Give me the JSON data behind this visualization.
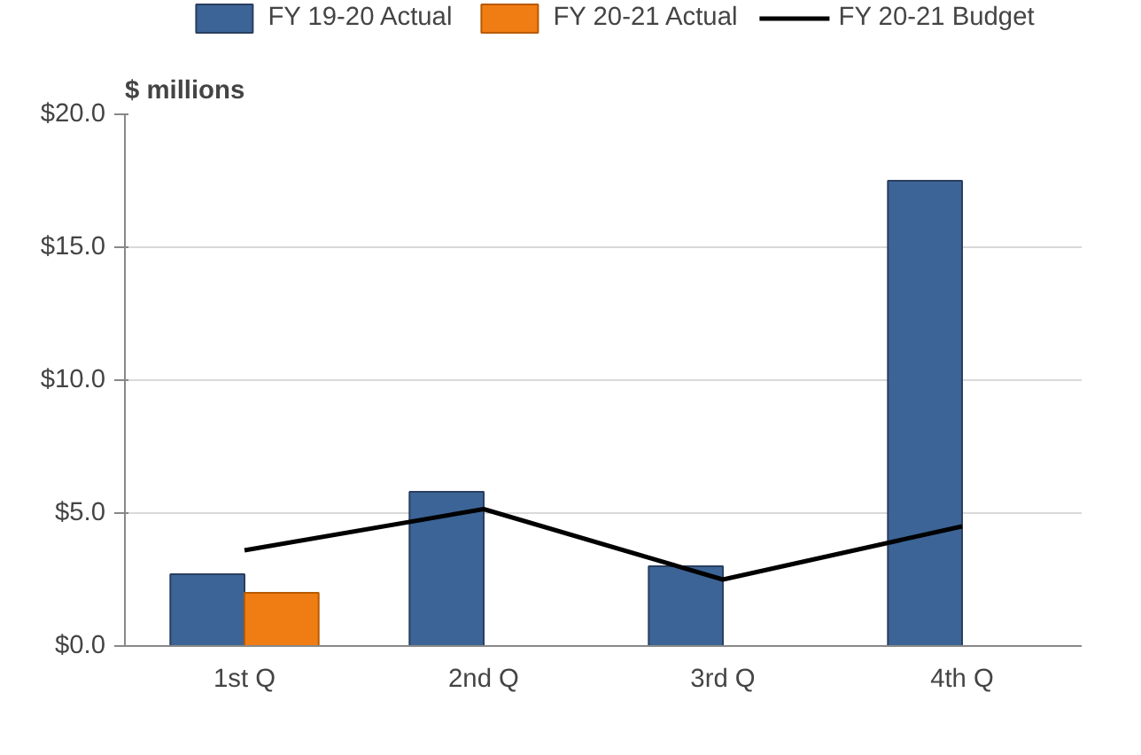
{
  "chart_data": {
    "type": "bar",
    "ylabel": "$ millions",
    "categories": [
      "1st Q",
      "2nd Q",
      "3rd Q",
      "4th Q"
    ],
    "series": [
      {
        "name": "FY 19-20 Actual",
        "color": "#3c6496",
        "values": [
          2.7,
          5.8,
          3.0,
          17.5
        ]
      },
      {
        "name": "FY 20-21 Actual",
        "color": "#f07d14",
        "values": [
          2.0,
          null,
          null,
          null
        ]
      },
      {
        "name": "FY 20-21 Budget",
        "type": "line",
        "color": "#000000",
        "values": [
          3.6,
          5.15,
          2.5,
          4.5
        ]
      }
    ],
    "ylim": [
      0,
      20
    ],
    "yticks": [
      {
        "value": 0,
        "label": "$0.0"
      },
      {
        "value": 5,
        "label": "$5.0"
      },
      {
        "value": 10,
        "label": "$10.0"
      },
      {
        "value": 15,
        "label": "$15.0"
      },
      {
        "value": 20,
        "label": "$20.0"
      }
    ],
    "grid": "y",
    "legend": "top"
  }
}
